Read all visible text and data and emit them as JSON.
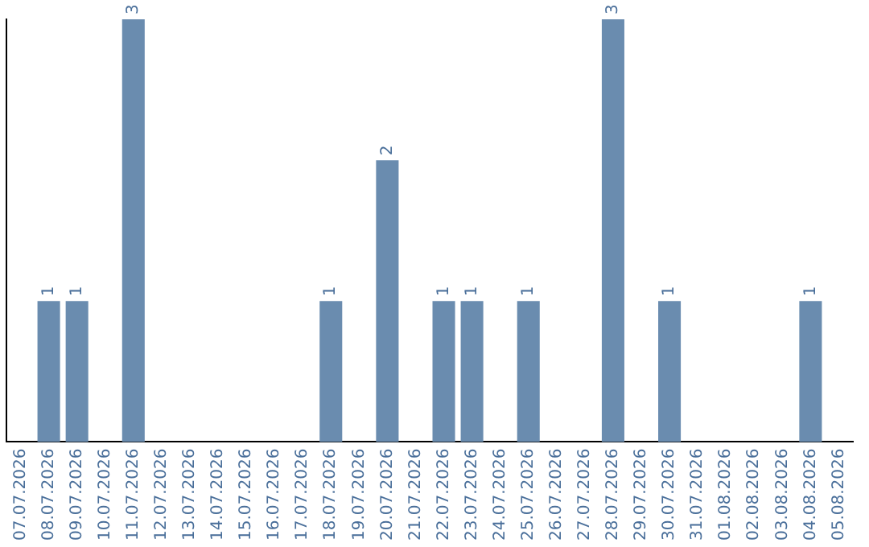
{
  "chart_data": {
    "type": "bar",
    "categories": [
      "07.07.2026",
      "08.07.2026",
      "09.07.2026",
      "10.07.2026",
      "11.07.2026",
      "12.07.2026",
      "13.07.2026",
      "14.07.2026",
      "15.07.2026",
      "16.07.2026",
      "17.07.2026",
      "18.07.2026",
      "19.07.2026",
      "20.07.2026",
      "21.07.2026",
      "22.07.2026",
      "23.07.2026",
      "24.07.2026",
      "25.07.2026",
      "26.07.2026",
      "27.07.2026",
      "28.07.2026",
      "29.07.2026",
      "30.07.2026",
      "31.07.2026",
      "01.08.2026",
      "02.08.2026",
      "03.08.2026",
      "04.08.2026",
      "05.08.2026"
    ],
    "values": [
      0,
      1,
      1,
      0,
      3,
      0,
      0,
      0,
      0,
      0,
      0,
      1,
      0,
      2,
      0,
      1,
      1,
      0,
      1,
      0,
      0,
      3,
      0,
      1,
      0,
      0,
      0,
      0,
      1,
      0
    ],
    "value_labels": [
      null,
      "1",
      "1",
      null,
      "3",
      null,
      null,
      null,
      null,
      null,
      null,
      "1",
      null,
      "2",
      null,
      "1",
      "1",
      null,
      "1",
      null,
      null,
      "3",
      null,
      "1",
      null,
      null,
      null,
      null,
      "1",
      null
    ],
    "color": "#6a8caf",
    "grid": false,
    "legend": false
  }
}
